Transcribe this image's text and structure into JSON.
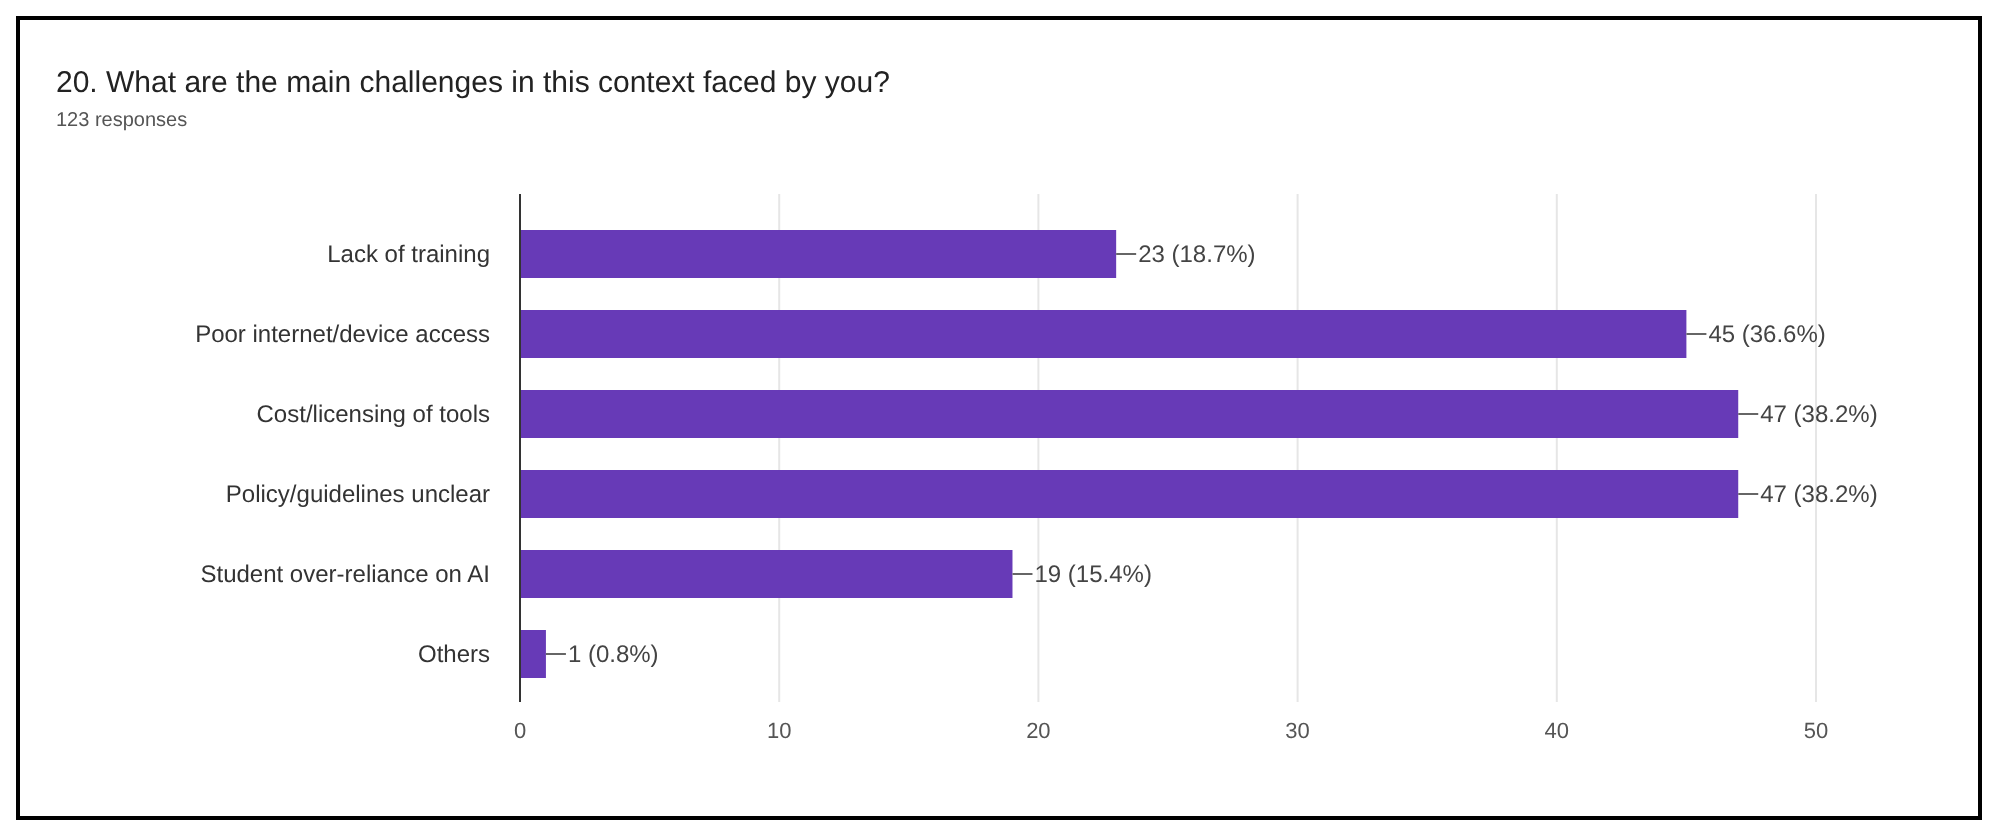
{
  "chart_data": {
    "type": "bar",
    "orientation": "horizontal",
    "title": "20. What are the main challenges in this context faced by you?",
    "subtitle": "123 responses",
    "categories": [
      "Lack of training",
      "Poor internet/device access",
      "Cost/licensing of tools",
      "Policy/guidelines unclear",
      "Student over-reliance on AI",
      "Others"
    ],
    "values": [
      23,
      45,
      47,
      47,
      19,
      1
    ],
    "value_labels": [
      "23 (18.7%)",
      "45 (36.6%)",
      "47 (38.2%)",
      "47 (38.2%)",
      "19 (15.4%)",
      "1 (0.8%)"
    ],
    "color": "#673ab7",
    "xlim": [
      0,
      50
    ],
    "xticks": [
      0,
      10,
      20,
      30,
      40,
      50
    ],
    "grid": "x"
  }
}
